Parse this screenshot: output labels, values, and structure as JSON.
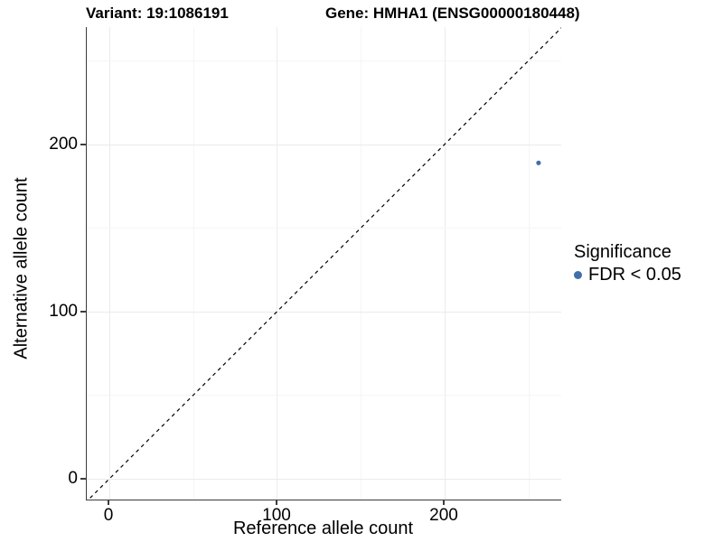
{
  "titles": {
    "variant": "Variant: 19:1086191",
    "gene": "Gene: HMHA1 (ENSG00000180448)"
  },
  "axes": {
    "x": {
      "label": "Reference allele count",
      "ticks": [
        "0",
        "100",
        "200"
      ]
    },
    "y": {
      "label": "Alternative allele count",
      "ticks": [
        "0",
        "100",
        "200"
      ]
    }
  },
  "legend": {
    "title": "Significance",
    "items": [
      {
        "label": "FDR < 0.05",
        "marker": "dot-icon",
        "color": "#406fab"
      }
    ]
  },
  "chart_data": {
    "type": "scatter",
    "title": "Variant: 19:1086191    Gene: HMHA1 (ENSG00000180448)",
    "xlabel": "Reference allele count",
    "ylabel": "Alternative allele count",
    "xlim": [
      -13.5,
      270
    ],
    "ylim": [
      -13.5,
      270
    ],
    "x_ticks": [
      0,
      100,
      200
    ],
    "y_ticks": [
      0,
      100,
      200
    ],
    "grid": true,
    "minor_grid": true,
    "legend_position": "right",
    "series": [
      {
        "name": "FDR < 0.05",
        "color": "#406fab",
        "points": [
          [
            256,
            189
          ]
        ]
      }
    ],
    "reference_line": {
      "type": "identity",
      "style": "dashed",
      "color": "#000000",
      "from": [
        0,
        0
      ],
      "to": [
        270,
        270
      ]
    },
    "colors": {
      "axis_line": "#3c3c3c",
      "grid_major": "#ebebeb",
      "grid_minor": "#f5f5f5",
      "background": "#ffffff"
    }
  }
}
